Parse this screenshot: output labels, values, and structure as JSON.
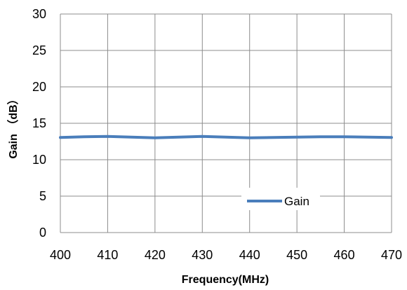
{
  "chart_data": {
    "type": "line",
    "xlabel": "Frequency(MHz)",
    "ylabel": "Gain （dB）",
    "xlim": [
      400,
      470
    ],
    "ylim": [
      0,
      30
    ],
    "x_ticks": [
      "400",
      "410",
      "420",
      "430",
      "440",
      "450",
      "460",
      "470"
    ],
    "y_ticks": [
      "0",
      "5",
      "10",
      "15",
      "20",
      "25",
      "30"
    ],
    "grid": true,
    "legend_position": "bottom-right",
    "series": [
      {
        "name": "Gain",
        "color": "#4a7ebb",
        "x": [
          400,
          405,
          410,
          415,
          420,
          425,
          430,
          435,
          440,
          445,
          450,
          455,
          460,
          465,
          470
        ],
        "y": [
          13.05,
          13.15,
          13.2,
          13.1,
          13.0,
          13.1,
          13.2,
          13.1,
          13.0,
          13.05,
          13.1,
          13.15,
          13.15,
          13.1,
          13.05
        ]
      }
    ]
  }
}
